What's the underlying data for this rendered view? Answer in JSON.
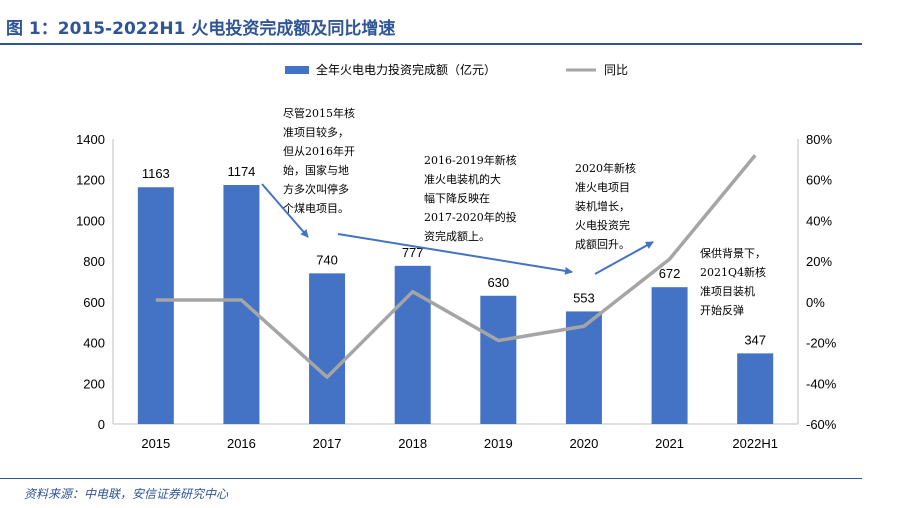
{
  "header": {
    "title": "图 1：2015-2022H1 火电投资完成额及同比增速"
  },
  "footer": {
    "source": "资料来源：中电联，安信证券研究中心"
  },
  "colors": {
    "bar": "#4472c4",
    "line": "#a5a5a5",
    "arrow": "#4472c4",
    "rule": "#2f5597"
  },
  "chart_data": {
    "type": "bar",
    "title": "",
    "categories": [
      "2015",
      "2016",
      "2017",
      "2018",
      "2019",
      "2020",
      "2021",
      "2022H1"
    ],
    "series": [
      {
        "name": "全年火电电力投资完成额（亿元）",
        "type": "bar",
        "axis": "left",
        "values": [
          1163,
          1174,
          740,
          777,
          630,
          553,
          672,
          347
        ],
        "data_labels": [
          "1163",
          "1174",
          "740",
          "777",
          "630",
          "553",
          "672",
          "347"
        ]
      },
      {
        "name": "同比",
        "type": "line",
        "axis": "right",
        "values": [
          0.9,
          0.9,
          -37.0,
          5.0,
          -19.0,
          -12.0,
          21.0,
          72.0
        ]
      }
    ],
    "ylim": [
      0,
      1400
    ],
    "yticks": [
      "0",
      "200",
      "400",
      "600",
      "800",
      "1000",
      "1200",
      "1400"
    ],
    "y2lim": [
      -60,
      80
    ],
    "y2ticks": [
      "-60%",
      "-40%",
      "-20%",
      "0%",
      "20%",
      "40%",
      "60%",
      "80%"
    ],
    "grid": false,
    "legend_position": "top-center",
    "annotations": [
      {
        "target": "2017",
        "lines": [
          "尽管2015年核",
          "准项目较多，",
          "但从2016年开",
          "始，国家与地",
          "方多次叫停多",
          "个煤电项目。"
        ]
      },
      {
        "target": "2020",
        "lines": [
          "2016-2019年新核",
          "准火电装机的大",
          "幅下降反映在",
          "2017-2020年的投",
          "资完成额上。"
        ]
      },
      {
        "target": "2021",
        "lines": [
          "2020年新核",
          "准火电项目",
          "装机增长，",
          "火电投资完",
          "成额回升。"
        ]
      },
      {
        "target": "2022H1",
        "lines": [
          "保供背景下，",
          "2021Q4新核",
          "准项目装机",
          "开始反弹"
        ]
      }
    ]
  }
}
